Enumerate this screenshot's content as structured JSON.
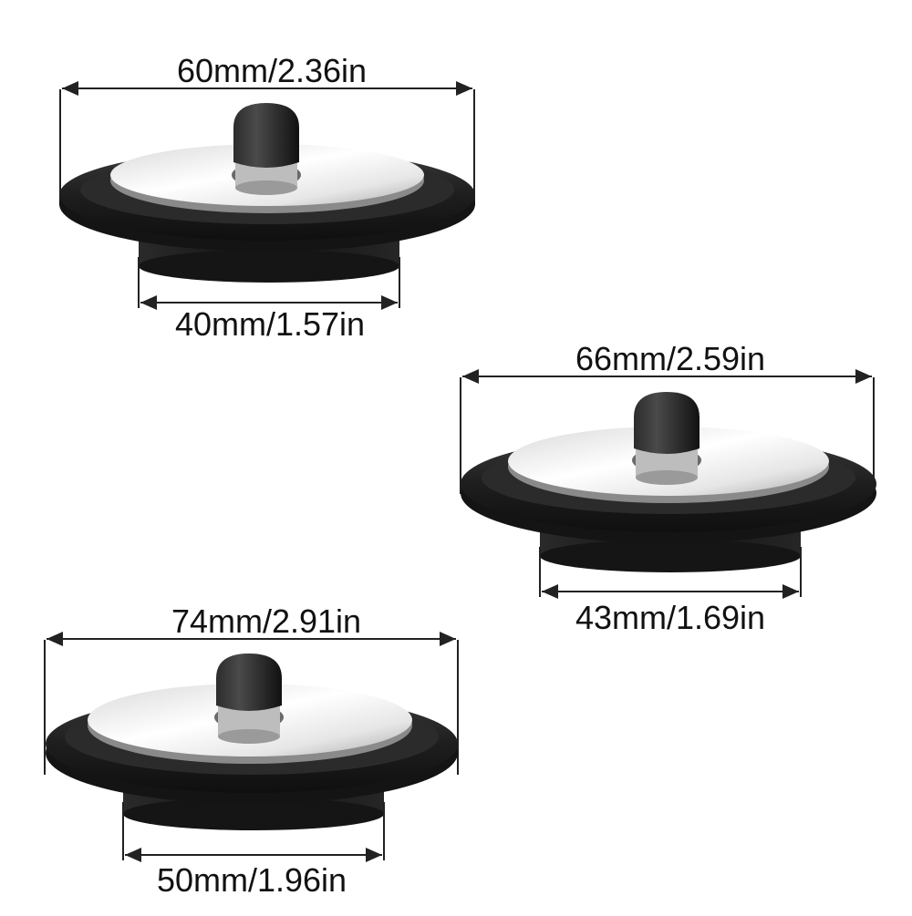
{
  "colors": {
    "background": "#ffffff",
    "rubber_black": "#1c1c1c",
    "steel_light": "#f2f2f2",
    "steel_dark": "#9a9a9a",
    "dimension_line": "#222222"
  },
  "stoppers": [
    {
      "top_diameter_label": "60mm/2.36in",
      "bottom_diameter_label": "40mm/1.57in"
    },
    {
      "top_diameter_label": "66mm/2.59in",
      "bottom_diameter_label": "43mm/1.69in"
    },
    {
      "top_diameter_label": "74mm/2.91in",
      "bottom_diameter_label": "50mm/1.96in"
    }
  ]
}
